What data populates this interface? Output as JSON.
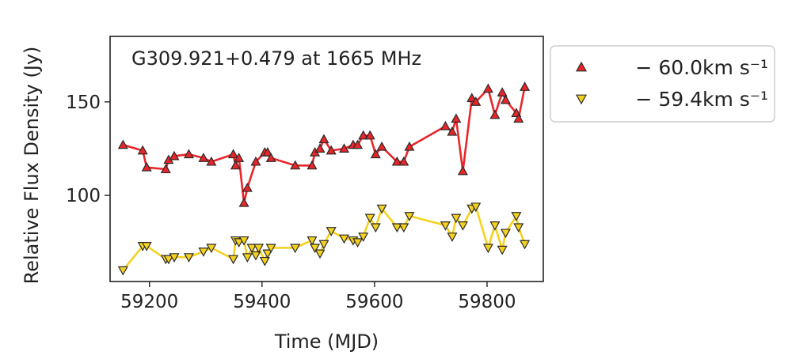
{
  "chart_data": {
    "type": "line",
    "title": "G309.921+0.479 at 1665 MHz",
    "xlabel": "Time (MJD)",
    "ylabel": "Relative Flux Density (Jy)",
    "xlim": [
      59130,
      59900
    ],
    "ylim": [
      54,
      185
    ],
    "xticks": [
      59200,
      59400,
      59600,
      59800
    ],
    "yticks": [
      100,
      150
    ],
    "grid": false,
    "legend_position": "outside-right",
    "series": [
      {
        "name": "− 60.0km s⁻¹",
        "color": "#e8262a",
        "marker": "triangle-up",
        "points": [
          [
            59153,
            127
          ],
          [
            59188,
            124
          ],
          [
            59195,
            115
          ],
          [
            59229,
            114
          ],
          [
            59234,
            119
          ],
          [
            59244,
            121
          ],
          [
            59270,
            122
          ],
          [
            59296,
            120
          ],
          [
            59310,
            118
          ],
          [
            59349,
            122
          ],
          [
            59353,
            116
          ],
          [
            59359,
            120
          ],
          [
            59368,
            96
          ],
          [
            59374,
            104
          ],
          [
            59389,
            118
          ],
          [
            59405,
            123
          ],
          [
            59410,
            123
          ],
          [
            59416,
            120
          ],
          [
            59459,
            116
          ],
          [
            59489,
            116
          ],
          [
            59494,
            123
          ],
          [
            59503,
            125
          ],
          [
            59510,
            130
          ],
          [
            59523,
            124
          ],
          [
            59546,
            125
          ],
          [
            59562,
            127
          ],
          [
            59570,
            127
          ],
          [
            59580,
            132
          ],
          [
            59592,
            132
          ],
          [
            59602,
            122
          ],
          [
            59613,
            126
          ],
          [
            59640,
            118
          ],
          [
            59652,
            118
          ],
          [
            59662,
            126
          ],
          [
            59726,
            137
          ],
          [
            59738,
            134
          ],
          [
            59745,
            141
          ],
          [
            59757,
            113
          ],
          [
            59773,
            152
          ],
          [
            59780,
            150
          ],
          [
            59802,
            157
          ],
          [
            59814,
            143
          ],
          [
            59827,
            155
          ],
          [
            59833,
            151
          ],
          [
            59852,
            144
          ],
          [
            59856,
            141
          ],
          [
            59867,
            158
          ]
        ]
      },
      {
        "name": "− 59.4km s⁻¹",
        "color": "#f5d21f",
        "marker": "triangle-down",
        "points": [
          [
            59153,
            60
          ],
          [
            59188,
            73
          ],
          [
            59195,
            73
          ],
          [
            59229,
            66
          ],
          [
            59234,
            66
          ],
          [
            59244,
            67
          ],
          [
            59270,
            67
          ],
          [
            59296,
            70
          ],
          [
            59310,
            72
          ],
          [
            59349,
            66
          ],
          [
            59353,
            76
          ],
          [
            59359,
            75
          ],
          [
            59368,
            76
          ],
          [
            59374,
            67
          ],
          [
            59382,
            72
          ],
          [
            59389,
            68
          ],
          [
            59394,
            72
          ],
          [
            59405,
            65
          ],
          [
            59410,
            69
          ],
          [
            59416,
            72
          ],
          [
            59459,
            72
          ],
          [
            59489,
            76
          ],
          [
            59494,
            72
          ],
          [
            59503,
            69
          ],
          [
            59510,
            74
          ],
          [
            59523,
            81
          ],
          [
            59546,
            77
          ],
          [
            59562,
            76
          ],
          [
            59570,
            75
          ],
          [
            59580,
            78
          ],
          [
            59592,
            88
          ],
          [
            59602,
            83
          ],
          [
            59613,
            93
          ],
          [
            59640,
            83
          ],
          [
            59652,
            83
          ],
          [
            59662,
            89
          ],
          [
            59726,
            84
          ],
          [
            59738,
            78
          ],
          [
            59745,
            88
          ],
          [
            59757,
            84
          ],
          [
            59773,
            93
          ],
          [
            59780,
            94
          ],
          [
            59802,
            72
          ],
          [
            59814,
            84
          ],
          [
            59827,
            71
          ],
          [
            59833,
            80
          ],
          [
            59852,
            89
          ],
          [
            59856,
            83
          ],
          [
            59867,
            74
          ]
        ]
      }
    ]
  }
}
